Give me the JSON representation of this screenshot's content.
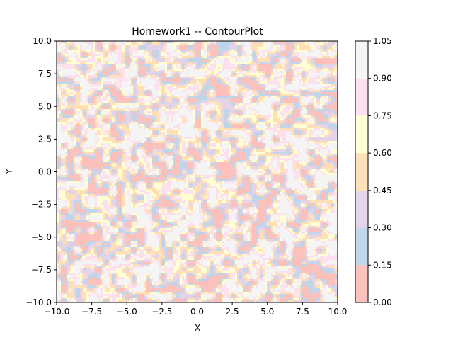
{
  "chart_data": {
    "type": "heatmap",
    "title": "Homework1 -- ContourPlot",
    "xlabel": "X",
    "ylabel": "Y",
    "xlim": [
      -10,
      10
    ],
    "ylim": [
      -10,
      10
    ],
    "x_ticks": [
      "−10.0",
      "−7.5",
      "−5.0",
      "−2.5",
      "0.0",
      "2.5",
      "5.0",
      "7.5",
      "10.0"
    ],
    "y_ticks": [
      "−10.0",
      "−7.5",
      "−5.0",
      "−2.5",
      "0.0",
      "2.5",
      "5.0",
      "7.5",
      "10.0"
    ],
    "field": "random noise values in [0, 1] over the grid (filled contours)",
    "colorbar": {
      "levels": [
        0.0,
        0.15,
        0.3,
        0.45,
        0.6,
        0.75,
        0.9,
        1.05
      ],
      "tick_labels": [
        "0.00",
        "0.15",
        "0.30",
        "0.45",
        "0.60",
        "0.75",
        "0.90",
        "1.05"
      ],
      "colors": [
        "#fbb4ae",
        "#b3cde3",
        "#decbe4",
        "#fed9a6",
        "#ffffcc",
        "#fddaec",
        "#f2f2f2"
      ],
      "colormap": "Pastel1",
      "fill_alpha": 0.8
    },
    "grid": false,
    "legend": "none"
  }
}
